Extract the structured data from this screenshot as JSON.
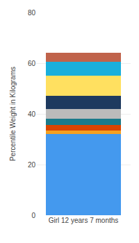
{
  "chart_data": {
    "type": "bar",
    "stacked": true,
    "xlabel": null,
    "ylabel": "Percentile Weight in Kilograms",
    "categories": [
      "Girl 12 years 7 months"
    ],
    "series": [
      {
        "color": "#4499EE",
        "values": [
          32.0
        ]
      },
      {
        "color": "#F5A020",
        "values": [
          1.5
        ]
      },
      {
        "color": "#D94400",
        "values": [
          2.0
        ]
      },
      {
        "color": "#1A7A8A",
        "values": [
          2.5
        ]
      },
      {
        "color": "#BBBBBB",
        "values": [
          4.0
        ]
      },
      {
        "color": "#1E3A5F",
        "values": [
          5.0
        ]
      },
      {
        "color": "#FFE060",
        "values": [
          8.0
        ]
      },
      {
        "color": "#1AAFDC",
        "values": [
          5.5
        ]
      },
      {
        "color": "#C0634B",
        "values": [
          3.5
        ]
      }
    ],
    "ylim": [
      0,
      80
    ],
    "yticks": [
      0,
      20,
      40,
      60,
      80
    ],
    "grid": true
  }
}
